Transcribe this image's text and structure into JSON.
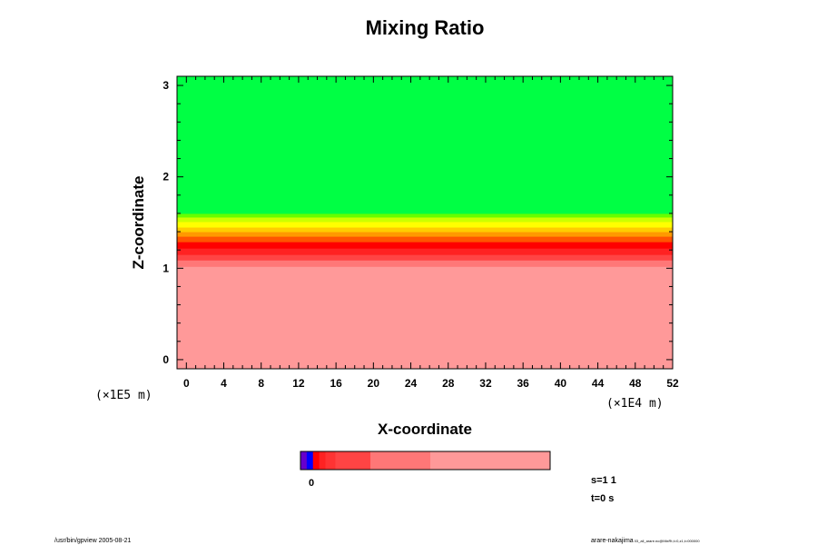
{
  "chart_data": {
    "type": "heatmap",
    "title": "Mixing Ratio",
    "xlabel": "X-coordinate",
    "ylabel": "Z-coordinate",
    "x_scale_label": "(×1E4 m)",
    "y_scale_label": "(×1E5 m)",
    "xlim": [
      -1,
      52
    ],
    "ylim": [
      -0.1,
      3.1
    ],
    "x_ticks": [
      0,
      4,
      8,
      12,
      16,
      20,
      24,
      28,
      32,
      36,
      40,
      44,
      48,
      52
    ],
    "y_ticks": [
      0,
      1,
      2,
      3
    ],
    "field_bands": [
      {
        "z_from": -0.1,
        "z_to": 1.02,
        "level": "bg",
        "color": "#ff9999"
      },
      {
        "z_from": 1.02,
        "z_to": 1.09,
        "level": "l5",
        "color": "#ff7777"
      },
      {
        "z_from": 1.09,
        "z_to": 1.15,
        "level": "l4",
        "color": "#ff4444"
      },
      {
        "z_from": 1.15,
        "z_to": 1.22,
        "level": "l3",
        "color": "#ff2222"
      },
      {
        "z_from": 1.22,
        "z_to": 1.29,
        "level": "l2",
        "color": "#ff0000"
      },
      {
        "z_from": 1.29,
        "z_to": 1.35,
        "level": "o1",
        "color": "#ff5500"
      },
      {
        "z_from": 1.35,
        "z_to": 1.4,
        "level": "o2",
        "color": "#ff9900"
      },
      {
        "z_from": 1.4,
        "z_to": 1.45,
        "level": "o3",
        "color": "#ffcc00"
      },
      {
        "z_from": 1.45,
        "z_to": 1.51,
        "level": "y1",
        "color": "#ffff00"
      },
      {
        "z_from": 1.51,
        "z_to": 1.56,
        "level": "y2",
        "color": "#ccff00"
      },
      {
        "z_from": 1.56,
        "z_to": 1.6,
        "level": "y3",
        "color": "#66ff00"
      },
      {
        "z_from": 1.6,
        "z_to": 3.1,
        "level": "top",
        "color": "#00ff44"
      }
    ],
    "colorbar": {
      "tick_label": "0",
      "segments": [
        {
          "from": 0.0,
          "to": 0.025,
          "color": "#6600cc"
        },
        {
          "from": 0.025,
          "to": 0.05,
          "color": "#0000ff"
        },
        {
          "from": 0.05,
          "to": 0.075,
          "color": "#ff0000"
        },
        {
          "from": 0.075,
          "to": 0.1,
          "color": "#ff2222"
        },
        {
          "from": 0.1,
          "to": 0.14,
          "color": "#ff3333"
        },
        {
          "from": 0.14,
          "to": 0.28,
          "color": "#ff4444"
        },
        {
          "from": 0.28,
          "to": 0.52,
          "color": "#ff7777"
        },
        {
          "from": 0.52,
          "to": 1.0,
          "color": "#ff9999"
        }
      ]
    }
  },
  "annotations": {
    "scale_info": "s=1 1",
    "time_info": "t=0 s",
    "footer_left": "/usr/bin/gpview 2005-08-21",
    "footer_right": "arare-nakajima",
    "footer_right_small": "03_all_arare.nc@MixRt,t=0,z1,t=000000"
  }
}
